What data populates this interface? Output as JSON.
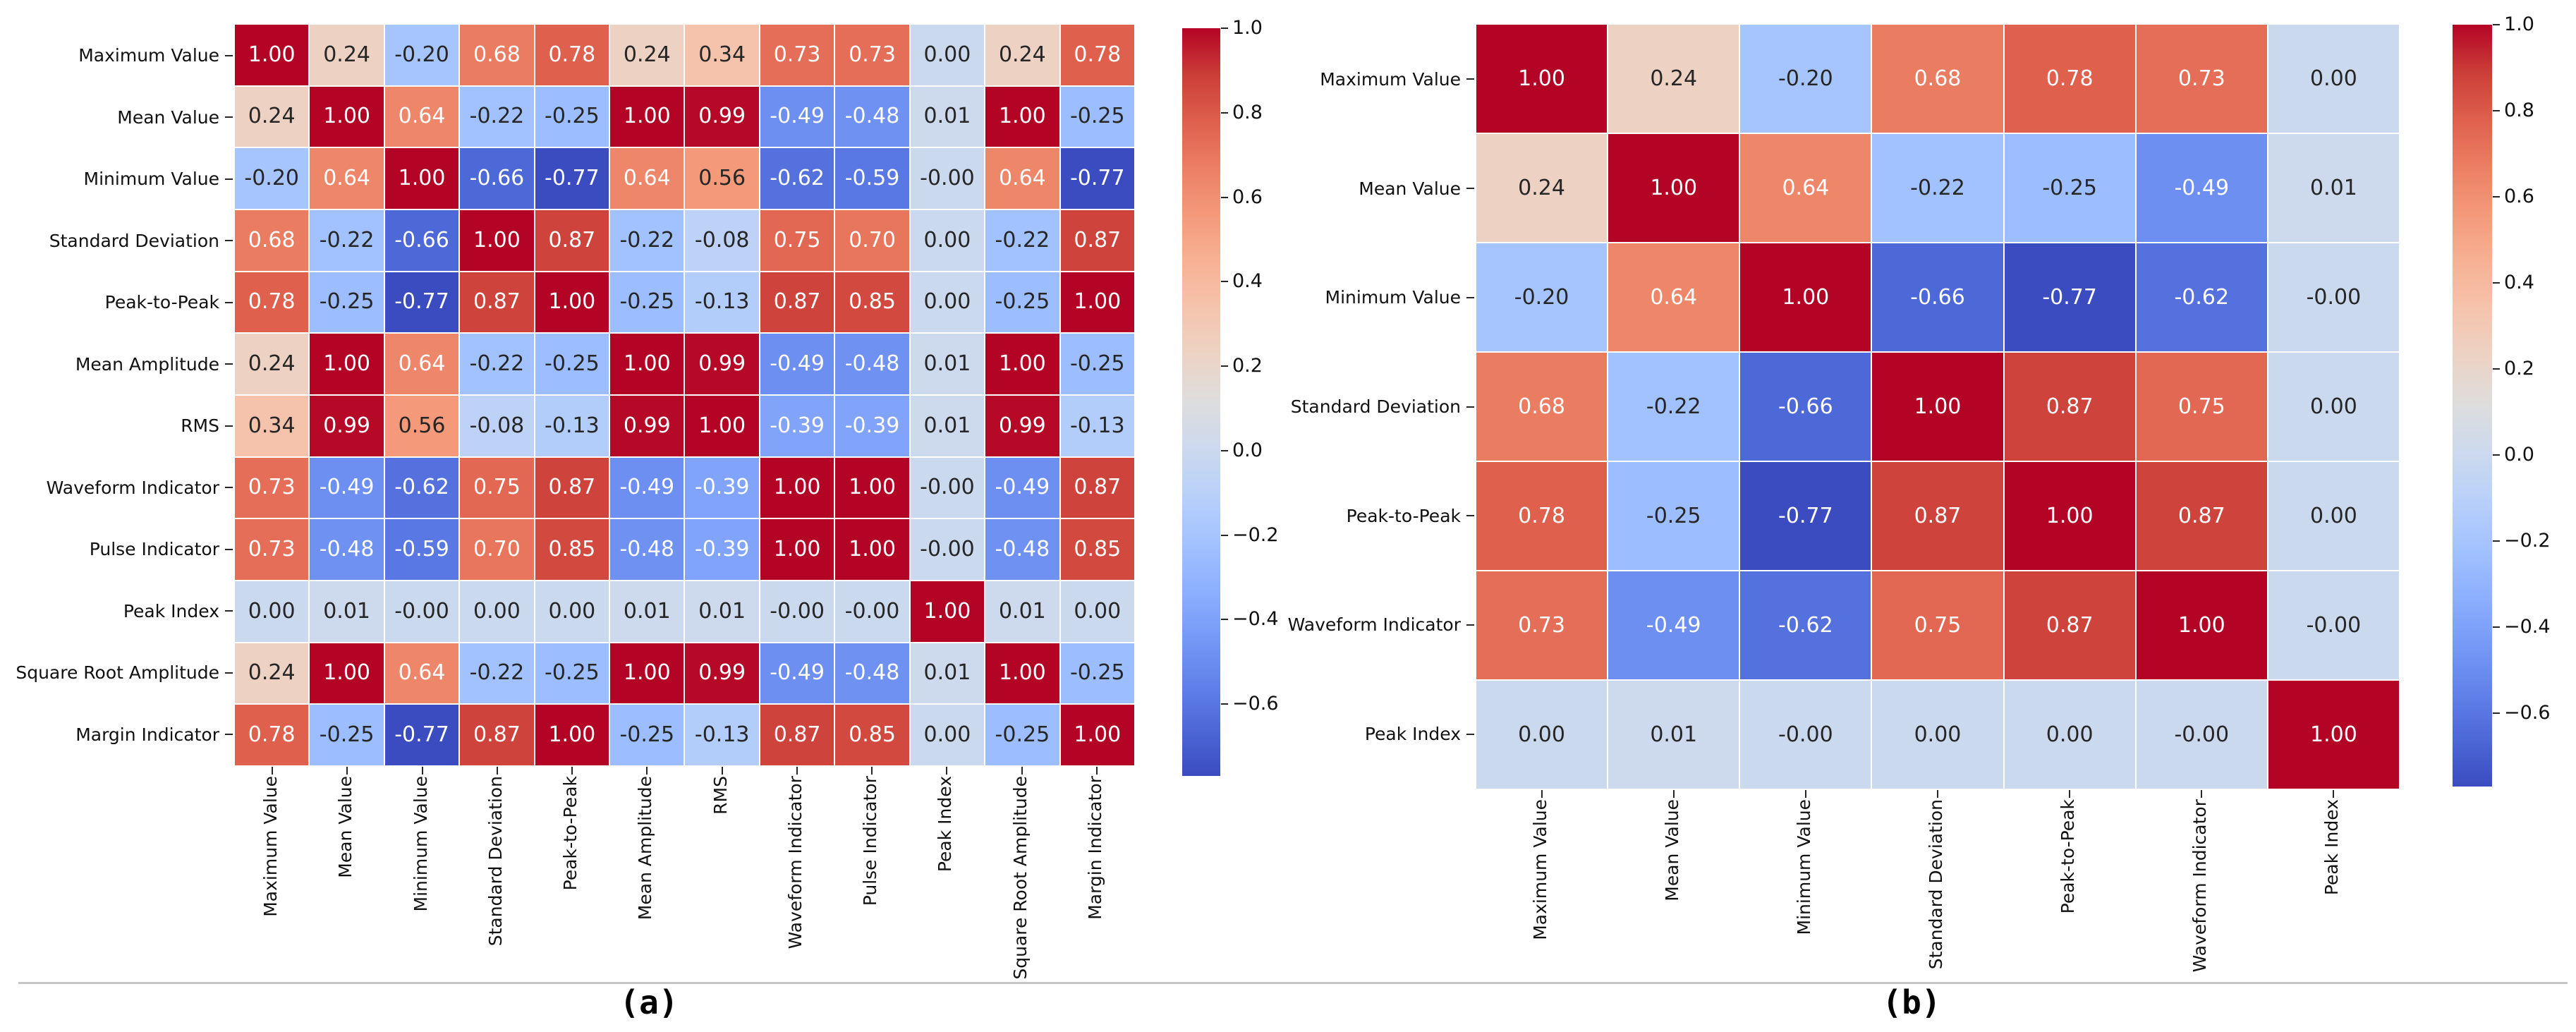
{
  "figure": {
    "background": "#ffffff",
    "separator_color": "#c6c6c6"
  },
  "captions": {
    "a": "(a)",
    "b": "(b)"
  },
  "colormap": {
    "name": "coolwarm",
    "stops": [
      [
        0.0,
        59,
        76,
        192
      ],
      [
        0.0625,
        77,
        104,
        215
      ],
      [
        0.125,
        98,
        130,
        234
      ],
      [
        0.1875,
        119,
        154,
        247
      ],
      [
        0.25,
        141,
        176,
        254
      ],
      [
        0.3125,
        163,
        194,
        255
      ],
      [
        0.375,
        184,
        208,
        249
      ],
      [
        0.4375,
        204,
        217,
        238
      ],
      [
        0.5,
        221,
        221,
        221
      ],
      [
        0.5625,
        236,
        211,
        197
      ],
      [
        0.625,
        245,
        196,
        173
      ],
      [
        0.6875,
        247,
        177,
        148
      ],
      [
        0.75,
        244,
        154,
        123
      ],
      [
        0.8125,
        236,
        127,
        99
      ],
      [
        0.875,
        222,
        96,
        77
      ],
      [
        0.9375,
        203,
        62,
        56
      ],
      [
        1.0,
        180,
        4,
        38
      ]
    ],
    "annot_text_dark": "#262626",
    "annot_text_light": "#ffffff",
    "tick_color": "#262626"
  },
  "chart_data": [
    {
      "type": "heatmap",
      "caption": "(a)",
      "labels": [
        "Maximum Value",
        "Mean Value",
        "Minimum Value",
        "Standard Deviation",
        "Peak-to-Peak",
        "Mean Amplitude",
        "RMS",
        "Waveform Indicator",
        "Pulse Indicator",
        "Peak Index",
        "Square Root Amplitude",
        "Margin Indicator"
      ],
      "matrix": [
        [
          "1.00",
          "0.24",
          "-0.20",
          "0.68",
          "0.78",
          "0.24",
          "0.34",
          "0.73",
          "0.73",
          "0.00",
          "0.24",
          "0.78"
        ],
        [
          "0.24",
          "1.00",
          "0.64",
          "-0.22",
          "-0.25",
          "1.00",
          "0.99",
          "-0.49",
          "-0.48",
          "0.01",
          "1.00",
          "-0.25"
        ],
        [
          "-0.20",
          "0.64",
          "1.00",
          "-0.66",
          "-0.77",
          "0.64",
          "0.56",
          "-0.62",
          "-0.59",
          "-0.00",
          "0.64",
          "-0.77"
        ],
        [
          "0.68",
          "-0.22",
          "-0.66",
          "1.00",
          "0.87",
          "-0.22",
          "-0.08",
          "0.75",
          "0.70",
          "0.00",
          "-0.22",
          "0.87"
        ],
        [
          "0.78",
          "-0.25",
          "-0.77",
          "0.87",
          "1.00",
          "-0.25",
          "-0.13",
          "0.87",
          "0.85",
          "0.00",
          "-0.25",
          "1.00"
        ],
        [
          "0.24",
          "1.00",
          "0.64",
          "-0.22",
          "-0.25",
          "1.00",
          "0.99",
          "-0.49",
          "-0.48",
          "0.01",
          "1.00",
          "-0.25"
        ],
        [
          "0.34",
          "0.99",
          "0.56",
          "-0.08",
          "-0.13",
          "0.99",
          "1.00",
          "-0.39",
          "-0.39",
          "0.01",
          "0.99",
          "-0.13"
        ],
        [
          "0.73",
          "-0.49",
          "-0.62",
          "0.75",
          "0.87",
          "-0.49",
          "-0.39",
          "1.00",
          "1.00",
          "-0.00",
          "-0.49",
          "0.87"
        ],
        [
          "0.73",
          "-0.48",
          "-0.59",
          "0.70",
          "0.85",
          "-0.48",
          "-0.39",
          "1.00",
          "1.00",
          "-0.00",
          "-0.48",
          "0.85"
        ],
        [
          "0.00",
          "0.01",
          "-0.00",
          "0.00",
          "0.00",
          "0.01",
          "0.01",
          "-0.00",
          "-0.00",
          "1.00",
          "0.01",
          "0.00"
        ],
        [
          "0.24",
          "1.00",
          "0.64",
          "-0.22",
          "-0.25",
          "1.00",
          "0.99",
          "-0.49",
          "-0.48",
          "0.01",
          "1.00",
          "-0.25"
        ],
        [
          "0.78",
          "-0.25",
          "-0.77",
          "0.87",
          "1.00",
          "-0.25",
          "-0.13",
          "0.87",
          "0.85",
          "0.00",
          "-0.25",
          "1.00"
        ]
      ],
      "vmin": -0.77,
      "vmax": 1.0,
      "legend_position": "right",
      "colorbar_ticks": [
        "1.0",
        "0.8",
        "0.6",
        "0.4",
        "0.2",
        "0.0",
        "−0.2",
        "−0.4",
        "−0.6"
      ]
    },
    {
      "type": "heatmap",
      "caption": "(b)",
      "labels": [
        "Maximum Value",
        "Mean Value",
        "Minimum Value",
        "Standard Deviation",
        "Peak-to-Peak",
        "Waveform Indicator",
        "Peak Index"
      ],
      "matrix": [
        [
          "1.00",
          "0.24",
          "-0.20",
          "0.68",
          "0.78",
          "0.73",
          "0.00"
        ],
        [
          "0.24",
          "1.00",
          "0.64",
          "-0.22",
          "-0.25",
          "-0.49",
          "0.01"
        ],
        [
          "-0.20",
          "0.64",
          "1.00",
          "-0.66",
          "-0.77",
          "-0.62",
          "-0.00"
        ],
        [
          "0.68",
          "-0.22",
          "-0.66",
          "1.00",
          "0.87",
          "0.75",
          "0.00"
        ],
        [
          "0.78",
          "-0.25",
          "-0.77",
          "0.87",
          "1.00",
          "0.87",
          "0.00"
        ],
        [
          "0.73",
          "-0.49",
          "-0.62",
          "0.75",
          "0.87",
          "1.00",
          "-0.00"
        ],
        [
          "0.00",
          "0.01",
          "-0.00",
          "0.00",
          "0.00",
          "-0.00",
          "1.00"
        ]
      ],
      "vmin": -0.77,
      "vmax": 1.0,
      "legend_position": "right",
      "colorbar_ticks": [
        "1.0",
        "0.8",
        "0.6",
        "0.4",
        "0.2",
        "0.0",
        "−0.2",
        "−0.4",
        "−0.6"
      ]
    }
  ]
}
